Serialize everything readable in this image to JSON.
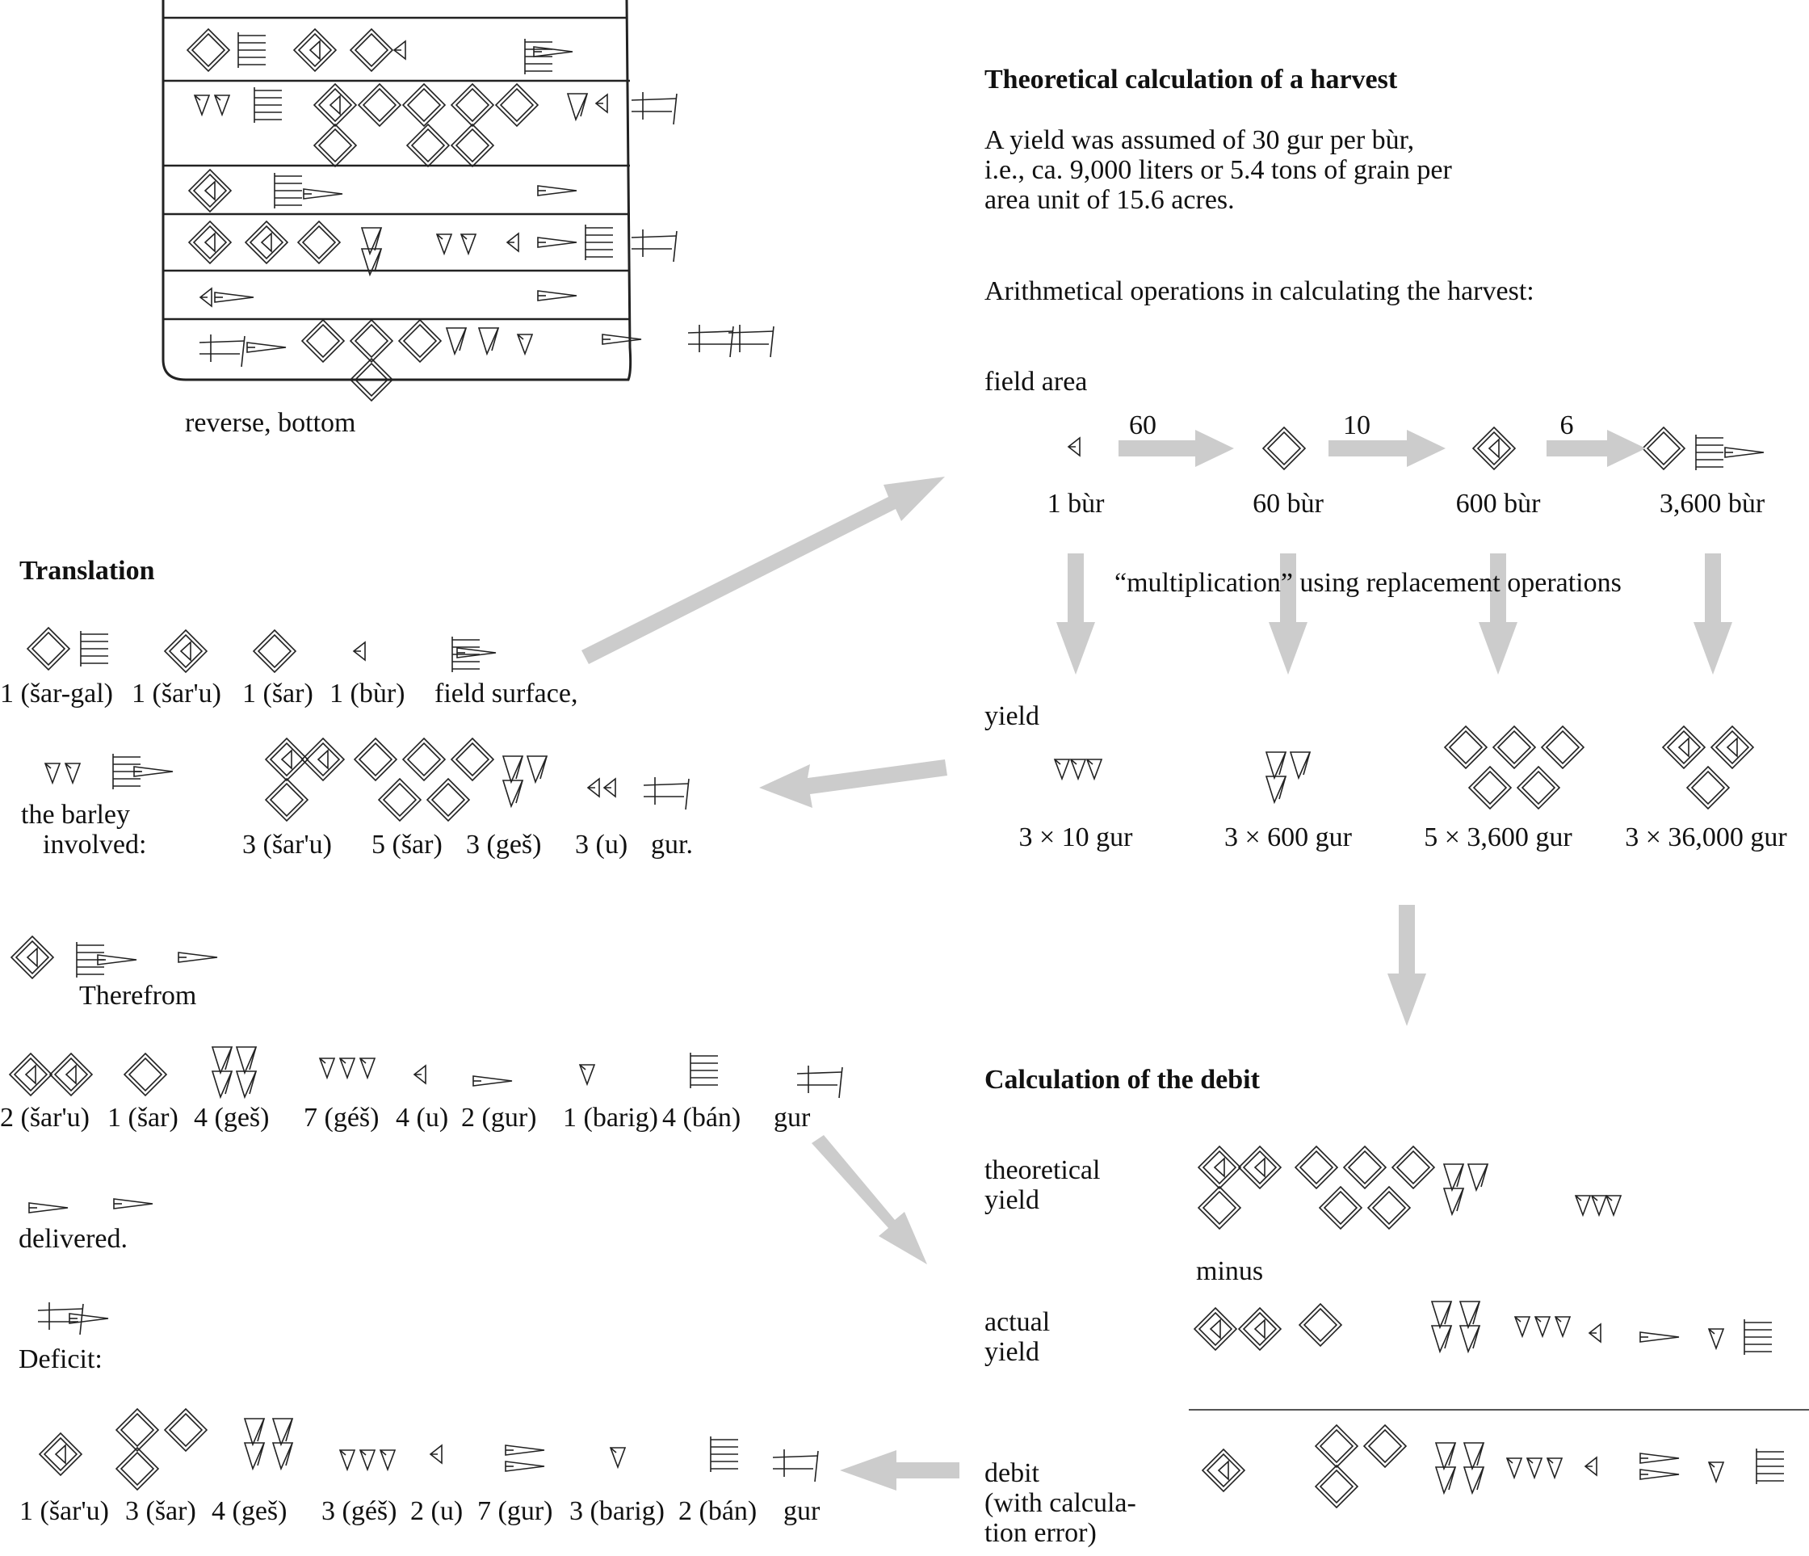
{
  "left": {
    "tablet_caption": "reverse, bottom",
    "translation_heading": "Translation",
    "row1": [
      "1 (šar-gal)",
      "1 (šar'u)",
      "1 (šar)",
      "1 (bùr)",
      "field surface,"
    ],
    "row2_label": [
      "the barley",
      "involved:"
    ],
    "row2": [
      "3 (šar'u)",
      "5 (šar)",
      "3 (geš)",
      "3 (u)",
      "gur."
    ],
    "therefrom": "Therefrom",
    "row3": [
      "2 (šar'u)",
      "1 (šar)",
      "4 (geš)",
      "7 (géš)",
      "4 (u)",
      "2 (gur)",
      "1 (barig)",
      "4 (bán)",
      "gur"
    ],
    "delivered": "delivered.",
    "deficit": "Deficit:",
    "row4": [
      "1 (šar'u)",
      "3 (šar)",
      "4 (geš)",
      "3 (géš)",
      "2 (u)",
      "7 (gur)",
      "3 (barig)",
      "2 (bán)",
      "gur"
    ]
  },
  "right": {
    "harvest_heading": "Theoretical calculation of a harvest",
    "yield_note": [
      "A yield was assumed of 30 gur per bùr,",
      "i.e., ca. 9,000 liters or 5.4 tons of grain per",
      "area unit of 15.6 acres."
    ],
    "operations_label": "Arithmetical operations in calculating the harvest:",
    "field_area_label": "field area",
    "factors": [
      "60",
      "10",
      "6"
    ],
    "area_units": [
      "1 bùr",
      "60 bùr",
      "600 bùr",
      "3,600 bùr"
    ],
    "multiplication_label": "“multiplication” using replacement operations",
    "yield_label": "yield",
    "yield_values": [
      "3 × 10 gur",
      "3 × 600 gur",
      "5 × 3,600 gur",
      "3 × 36,000 gur"
    ],
    "debit_heading": "Calculation of the debit",
    "theoretical_yield_label": [
      "theoretical",
      "yield"
    ],
    "minus_label": "minus",
    "actual_yield_label": [
      "actual",
      "yield"
    ],
    "debit_label": [
      "debit",
      "(with calcula-",
      "tion error)"
    ]
  },
  "colors": {
    "text": "#111111",
    "arrow": "#cccccc",
    "rule": "#555555",
    "sign": "#222222"
  }
}
